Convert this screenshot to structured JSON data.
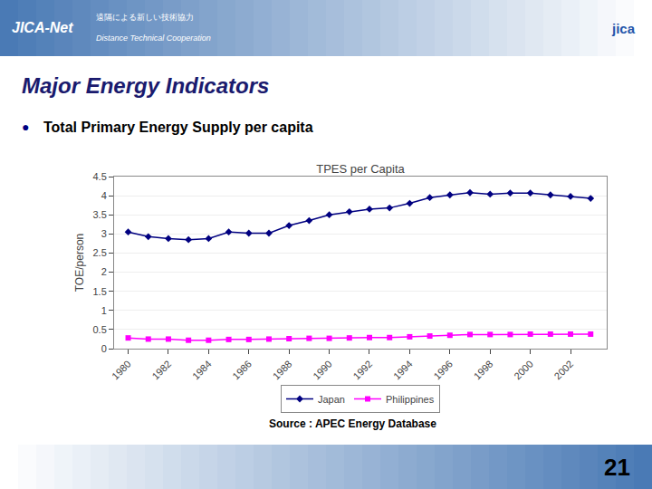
{
  "title": "Major Energy Indicators",
  "subtitle": "Total Primary Energy Supply per capita",
  "annotations": [
    "JICA-Net",
    "遠隔による新しい技術協力",
    "Distance Technical Cooperation",
    "jica",
    "●",
    "Source : APEC Energy Database",
    "21"
  ],
  "chart_data": {
    "type": "line",
    "title": "TPES per Capita",
    "ylabel": "TOE/person",
    "x": [
      1980,
      1981,
      1982,
      1983,
      1984,
      1985,
      1986,
      1987,
      1988,
      1989,
      1990,
      1991,
      1992,
      1993,
      1994,
      1995,
      1996,
      1997,
      1998,
      1999,
      2000,
      2001,
      2002,
      2003
    ],
    "series": [
      {
        "name": "Japan",
        "color": "#000080",
        "marker": "diamond",
        "values": [
          3.05,
          2.93,
          2.88,
          2.85,
          2.88,
          3.05,
          3.02,
          3.02,
          3.22,
          3.35,
          3.5,
          3.58,
          3.65,
          3.68,
          3.8,
          3.95,
          4.02,
          4.08,
          4.04,
          4.07,
          4.07,
          4.02,
          3.98,
          3.93
        ]
      },
      {
        "name": "Philippines",
        "color": "#FF00FF",
        "marker": "square",
        "values": [
          0.28,
          0.25,
          0.25,
          0.22,
          0.22,
          0.24,
          0.24,
          0.25,
          0.26,
          0.27,
          0.27,
          0.28,
          0.29,
          0.29,
          0.31,
          0.33,
          0.35,
          0.37,
          0.37,
          0.37,
          0.38,
          0.38,
          0.38,
          0.38
        ]
      }
    ],
    "xlim": [
      1979.3,
      2003.8
    ],
    "xticks": [
      1980,
      1982,
      1984,
      1986,
      1988,
      1990,
      1992,
      1994,
      1996,
      1998,
      2000,
      2002
    ],
    "ylim": [
      0,
      4.5
    ],
    "yticks": [
      0,
      0.5,
      1.0,
      1.5,
      2.0,
      2.5,
      3.0,
      3.5,
      4.0,
      4.5
    ],
    "grid": "y",
    "legend": "bottom"
  }
}
